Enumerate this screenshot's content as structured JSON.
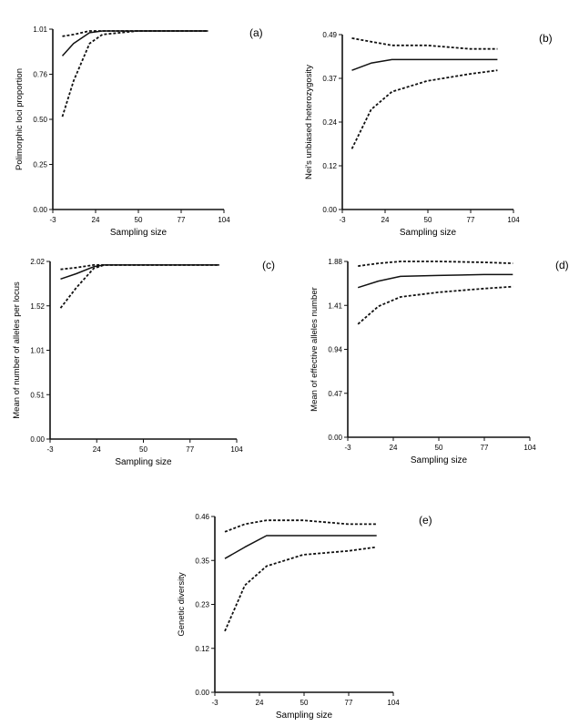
{
  "chart_data": [
    {
      "panel": "(a)",
      "type": "line",
      "xlabel": "Sampling size",
      "ylabel": "Polimorphic loci proportion",
      "xticks": [
        "-3",
        "24",
        "50",
        "77",
        "104"
      ],
      "yticks": [
        "0.00",
        "0.25",
        "0.50",
        "0.76",
        "1.01"
      ],
      "xlim": [
        -3,
        104
      ],
      "ylim": [
        0,
        1.01
      ],
      "series": [
        {
          "style": "solid",
          "x": [
            3,
            10,
            20,
            28,
            50,
            77,
            94
          ],
          "y": [
            0.86,
            0.93,
            0.99,
            1.0,
            1.0,
            1.0,
            1.0
          ]
        },
        {
          "style": "dashed",
          "x": [
            3,
            10,
            20,
            28,
            50,
            77,
            94
          ],
          "y": [
            0.52,
            0.72,
            0.93,
            0.98,
            1.0,
            1.0,
            1.0
          ]
        },
        {
          "style": "dashed",
          "x": [
            3,
            10,
            20,
            28,
            50,
            77,
            94
          ],
          "y": [
            0.97,
            0.98,
            1.0,
            1.0,
            1.0,
            1.0,
            1.0
          ]
        }
      ]
    },
    {
      "panel": "(b)",
      "type": "line",
      "xlabel": "Sampling size",
      "ylabel": "Nei's unbiased heterozygosity",
      "xticks": [
        "-3",
        "24",
        "50",
        "77",
        "104"
      ],
      "yticks": [
        "0.00",
        "0.12",
        "0.24",
        "0.37",
        "0.49"
      ],
      "xlim": [
        -3,
        104
      ],
      "ylim": [
        0,
        0.49
      ],
      "series": [
        {
          "style": "solid",
          "x": [
            3,
            15,
            28,
            50,
            77,
            94
          ],
          "y": [
            0.39,
            0.41,
            0.42,
            0.42,
            0.42,
            0.42
          ]
        },
        {
          "style": "dashed",
          "x": [
            3,
            15,
            28,
            50,
            77,
            94
          ],
          "y": [
            0.17,
            0.28,
            0.33,
            0.36,
            0.38,
            0.39
          ]
        },
        {
          "style": "dashed",
          "x": [
            3,
            15,
            28,
            50,
            77,
            94
          ],
          "y": [
            0.48,
            0.47,
            0.46,
            0.46,
            0.45,
            0.45
          ]
        }
      ]
    },
    {
      "panel": "(c)",
      "type": "line",
      "xlabel": "Sampling size",
      "ylabel": "Mean of number of alleles per locus",
      "xticks": [
        "-3",
        "24",
        "50",
        "77",
        "104"
      ],
      "yticks": [
        "0.00",
        "0.51",
        "1.01",
        "1.52",
        "2.02"
      ],
      "xlim": [
        -3,
        104
      ],
      "ylim": [
        0,
        2.02
      ],
      "series": [
        {
          "style": "solid",
          "x": [
            3,
            12,
            22,
            28,
            50,
            77,
            94
          ],
          "y": [
            1.82,
            1.88,
            1.96,
            1.98,
            1.98,
            1.98,
            1.98
          ]
        },
        {
          "style": "dashed",
          "x": [
            3,
            12,
            22,
            28,
            50,
            77,
            94
          ],
          "y": [
            1.49,
            1.72,
            1.94,
            1.98,
            1.98,
            1.98,
            1.98
          ]
        },
        {
          "style": "dashed",
          "x": [
            3,
            12,
            22,
            28,
            50,
            77,
            94
          ],
          "y": [
            1.93,
            1.95,
            1.98,
            1.98,
            1.98,
            1.98,
            1.98
          ]
        }
      ]
    },
    {
      "panel": "(d)",
      "type": "line",
      "xlabel": "Sampling size",
      "ylabel": "Mean of effective alleles number",
      "xticks": [
        "-3",
        "24",
        "50",
        "77",
        "104"
      ],
      "yticks": [
        "0.00",
        "0.47",
        "0.94",
        "1.41",
        "1.88"
      ],
      "xlim": [
        -3,
        104
      ],
      "ylim": [
        0,
        1.88
      ],
      "series": [
        {
          "style": "solid",
          "x": [
            3,
            15,
            28,
            50,
            77,
            94
          ],
          "y": [
            1.6,
            1.67,
            1.72,
            1.73,
            1.74,
            1.74
          ]
        },
        {
          "style": "dashed",
          "x": [
            3,
            15,
            28,
            50,
            77,
            94
          ],
          "y": [
            1.21,
            1.4,
            1.5,
            1.55,
            1.59,
            1.61
          ]
        },
        {
          "style": "dashed",
          "x": [
            3,
            15,
            28,
            50,
            77,
            94
          ],
          "y": [
            1.83,
            1.86,
            1.88,
            1.88,
            1.87,
            1.86
          ]
        }
      ]
    },
    {
      "panel": "(e)",
      "type": "line",
      "xlabel": "Sampling size",
      "ylabel": "Genetic diversity",
      "xticks": [
        "-3",
        "24",
        "50",
        "77",
        "104"
      ],
      "yticks": [
        "0.00",
        "0.12",
        "0.23",
        "0.35",
        "0.46"
      ],
      "xlim": [
        -3,
        104
      ],
      "ylim": [
        0,
        0.46
      ],
      "series": [
        {
          "style": "solid",
          "x": [
            3,
            15,
            28,
            50,
            77,
            94
          ],
          "y": [
            0.35,
            0.38,
            0.41,
            0.41,
            0.41,
            0.41
          ]
        },
        {
          "style": "dashed",
          "x": [
            3,
            15,
            28,
            50,
            77,
            94
          ],
          "y": [
            0.16,
            0.28,
            0.33,
            0.36,
            0.37,
            0.38
          ]
        },
        {
          "style": "dashed",
          "x": [
            3,
            15,
            28,
            50,
            77,
            94
          ],
          "y": [
            0.42,
            0.44,
            0.45,
            0.45,
            0.44,
            0.44
          ]
        }
      ]
    }
  ]
}
